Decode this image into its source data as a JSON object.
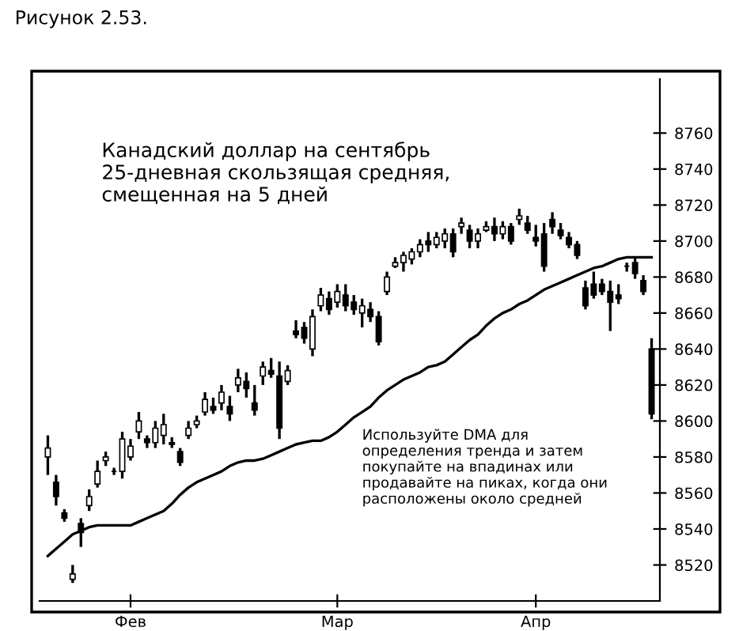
{
  "chart_data": {
    "type": "candlestick",
    "title": "Рисунок 2.53.",
    "annotations": [
      "Канадский доллар на сентябрь\n25-дневная скользящая средняя,\nсмещенная на 5 дней",
      "Используйте DMA для\nопределения тренда и затем\nпокупайте на впадинах или\nпродавайте на пиках, когда они\nрасположены около средней"
    ],
    "categories": [
      null,
      null,
      null,
      null,
      null,
      null,
      null,
      null,
      null,
      null,
      "Фев",
      null,
      null,
      null,
      null,
      null,
      null,
      null,
      null,
      null,
      null,
      null,
      null,
      null,
      null,
      null,
      null,
      null,
      null,
      null,
      null,
      null,
      null,
      null,
      null,
      "Мар",
      null,
      null,
      null,
      null,
      null,
      null,
      null,
      null,
      null,
      null,
      null,
      null,
      null,
      null,
      null,
      null,
      null,
      null,
      null,
      null,
      null,
      null,
      null,
      "Апр",
      null,
      null,
      null,
      null,
      null,
      null,
      null,
      null,
      null,
      null,
      null,
      null,
      null,
      null
    ],
    "color": "#000000",
    "ohlc": [
      [
        8580,
        8592,
        8570,
        8585
      ],
      [
        8566,
        8570,
        8553,
        8558
      ],
      [
        8549,
        8551,
        8544,
        8546
      ],
      [
        8512,
        8520,
        8510,
        8515
      ],
      [
        8543,
        8546,
        8530,
        8538
      ],
      [
        8553,
        8562,
        8550,
        8558
      ],
      [
        8565,
        8578,
        8563,
        8572
      ],
      [
        8578,
        8583,
        8575,
        8580
      ],
      [
        8572,
        8574,
        8570,
        8572
      ],
      [
        8572,
        8594,
        8568,
        8590
      ],
      [
        8580,
        8590,
        8578,
        8586
      ],
      [
        8594,
        8605,
        8590,
        8600
      ],
      [
        8590,
        8592,
        8585,
        8588
      ],
      [
        8588,
        8600,
        8585,
        8596
      ],
      [
        8592,
        8604,
        8587,
        8598
      ],
      [
        8588,
        8591,
        8585,
        8587
      ],
      [
        8583,
        8585,
        8575,
        8577
      ],
      [
        8592,
        8600,
        8590,
        8596
      ],
      [
        8598,
        8603,
        8596,
        8600
      ],
      [
        8605,
        8616,
        8603,
        8612
      ],
      [
        8608,
        8613,
        8604,
        8606
      ],
      [
        8610,
        8620,
        8606,
        8616
      ],
      [
        8608,
        8614,
        8600,
        8604
      ],
      [
        8620,
        8629,
        8616,
        8624
      ],
      [
        8622,
        8627,
        8613,
        8618
      ],
      [
        8610,
        8620,
        8603,
        8606
      ],
      [
        8625,
        8633,
        8620,
        8630
      ],
      [
        8628,
        8635,
        8624,
        8626
      ],
      [
        8625,
        8633,
        8590,
        8596
      ],
      [
        8622,
        8631,
        8620,
        8628
      ],
      [
        8650,
        8656,
        8646,
        8648
      ],
      [
        8652,
        8655,
        8643,
        8646
      ],
      [
        8640,
        8662,
        8636,
        8658
      ],
      [
        8664,
        8674,
        8661,
        8670
      ],
      [
        8668,
        8672,
        8659,
        8662
      ],
      [
        8666,
        8676,
        8663,
        8672
      ],
      [
        8670,
        8676,
        8661,
        8664
      ],
      [
        8666,
        8670,
        8659,
        8662
      ],
      [
        8660,
        8668,
        8652,
        8664
      ],
      [
        8662,
        8666,
        8655,
        8658
      ],
      [
        8658,
        8661,
        8642,
        8644
      ],
      [
        8672,
        8683,
        8670,
        8680
      ],
      [
        8686,
        8691,
        8685,
        8688
      ],
      [
        8688,
        8694,
        8683,
        8692
      ],
      [
        8690,
        8696,
        8687,
        8694
      ],
      [
        8694,
        8701,
        8691,
        8698
      ],
      [
        8700,
        8705,
        8694,
        8698
      ],
      [
        8698,
        8705,
        8696,
        8702
      ],
      [
        8700,
        8707,
        8696,
        8704
      ],
      [
        8704,
        8707,
        8691,
        8694
      ],
      [
        8708,
        8713,
        8704,
        8710
      ],
      [
        8706,
        8709,
        8696,
        8700
      ],
      [
        8700,
        8707,
        8696,
        8704
      ],
      [
        8706,
        8711,
        8705,
        8708
      ],
      [
        8708,
        8713,
        8700,
        8704
      ],
      [
        8704,
        8711,
        8701,
        8708
      ],
      [
        8708,
        8710,
        8698,
        8700
      ],
      [
        8712,
        8718,
        8709,
        8714
      ],
      [
        8710,
        8714,
        8704,
        8706
      ],
      [
        8702,
        8709,
        8697,
        8700
      ],
      [
        8704,
        8710,
        8683,
        8686
      ],
      [
        8712,
        8716,
        8704,
        8708
      ],
      [
        8706,
        8710,
        8701,
        8703
      ],
      [
        8702,
        8705,
        8696,
        8698
      ],
      [
        8698,
        8700,
        8690,
        8692
      ],
      [
        8674,
        8678,
        8662,
        8664
      ],
      [
        8676,
        8683,
        8668,
        8670
      ],
      [
        8676,
        8679,
        8670,
        8672
      ],
      [
        8672,
        8678,
        8650,
        8666
      ],
      [
        8670,
        8676,
        8665,
        8668
      ],
      [
        8686,
        8688,
        8683,
        8686
      ],
      [
        8688,
        8691,
        8679,
        8682
      ],
      [
        8678,
        8681,
        8670,
        8672
      ],
      [
        8640,
        8646,
        8601,
        8604
      ]
    ],
    "series": [
      {
        "type": "line",
        "color": "#000000",
        "values": [
          8525,
          8529,
          8533,
          8537,
          8539,
          8541,
          8542,
          8542,
          8542,
          8542,
          8542,
          8544,
          8546,
          8548,
          8550,
          8554,
          8559,
          8563,
          8566,
          8568,
          8570,
          8572,
          8575,
          8577,
          8578,
          8578,
          8579,
          8581,
          8583,
          8585,
          8587,
          8588,
          8589,
          8589,
          8591,
          8594,
          8598,
          8602,
          8605,
          8608,
          8613,
          8617,
          8620,
          8623,
          8625,
          8627,
          8630,
          8631,
          8633,
          8637,
          8641,
          8645,
          8648,
          8653,
          8657,
          8660,
          8662,
          8665,
          8667,
          8670,
          8673,
          8675,
          8677,
          8679,
          8681,
          8683,
          8685,
          8686,
          8688,
          8690,
          8691,
          8691,
          8691,
          8691
        ]
      }
    ],
    "ylim": [
      8500,
      8790
    ],
    "yticks": [
      8520,
      8540,
      8560,
      8580,
      8600,
      8620,
      8640,
      8660,
      8680,
      8700,
      8720,
      8740,
      8760
    ],
    "grid": false
  }
}
